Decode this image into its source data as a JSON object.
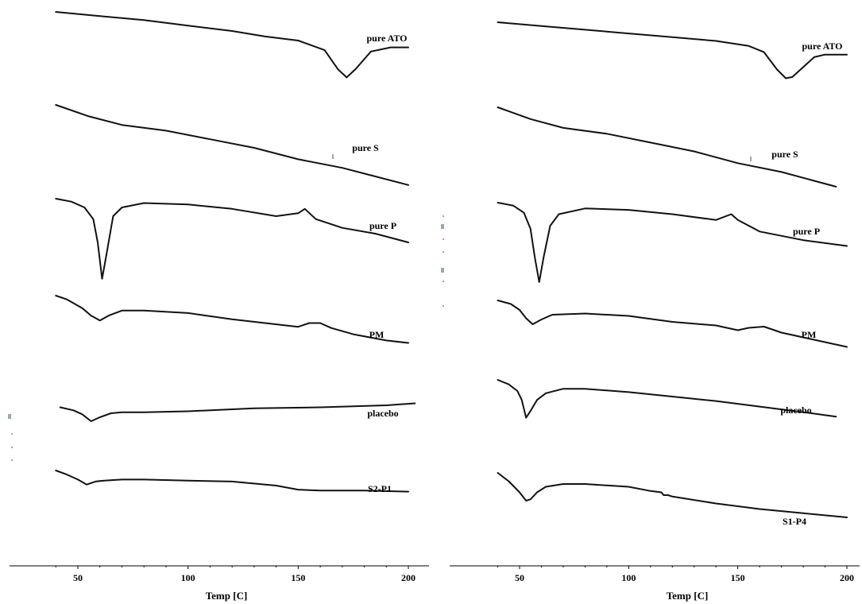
{
  "chart_data": [
    {
      "type": "line",
      "xlabel": "Temp [C]",
      "xticks": [
        50,
        100,
        150,
        200
      ],
      "xlim": [
        30,
        210
      ],
      "series": [
        {
          "name": "pure ATO",
          "x": [
            40,
            60,
            80,
            100,
            120,
            135,
            150,
            162,
            168,
            172,
            176,
            183,
            192,
            200
          ],
          "y": [
            100,
            97,
            94,
            90,
            86,
            82,
            79,
            72,
            58,
            52,
            58,
            71,
            74,
            74
          ]
        },
        {
          "name": "pure S",
          "x": [
            40,
            55,
            70,
            90,
            110,
            130,
            150,
            170,
            185,
            200
          ],
          "y": [
            100,
            92,
            86,
            82,
            76,
            70,
            62,
            56,
            50,
            44
          ]
        },
        {
          "name": "pure P",
          "x": [
            40,
            47,
            53,
            57,
            59,
            61,
            63,
            66,
            70,
            80,
            100,
            120,
            140,
            150,
            153,
            158,
            170,
            185,
            200
          ],
          "y": [
            100,
            98,
            94,
            86,
            70,
            45,
            62,
            88,
            94,
            97,
            96,
            93,
            88,
            90,
            93,
            86,
            80,
            76,
            70
          ]
        },
        {
          "name": "PM",
          "x": [
            40,
            45,
            52,
            56,
            60,
            64,
            70,
            80,
            100,
            120,
            135,
            150,
            155,
            160,
            165,
            175,
            190,
            200
          ],
          "y": [
            100,
            97,
            90,
            84,
            80,
            84,
            88,
            88,
            86,
            81,
            78,
            75,
            78,
            78,
            74,
            69,
            64,
            62
          ]
        },
        {
          "name": "placebo",
          "x": [
            42,
            48,
            52,
            56,
            60,
            65,
            70,
            80,
            100,
            130,
            160,
            190,
            203
          ],
          "y": [
            94,
            91,
            87,
            80,
            84,
            88,
            89,
            89,
            90,
            93,
            94,
            96,
            98
          ]
        },
        {
          "name": "S2-P1",
          "x": [
            40,
            45,
            50,
            54,
            58,
            62,
            70,
            80,
            100,
            120,
            140,
            150,
            160,
            180,
            200
          ],
          "y": [
            100,
            96,
            91,
            86,
            89,
            90,
            91,
            91,
            90,
            89,
            85,
            81,
            80,
            80,
            79
          ]
        }
      ]
    },
    {
      "type": "line",
      "xlabel": "Temp [C]",
      "xticks": [
        50,
        100,
        150,
        200
      ],
      "xlim": [
        30,
        210
      ],
      "series": [
        {
          "name": "pure ATO",
          "x": [
            40,
            60,
            80,
            100,
            120,
            140,
            155,
            162,
            168,
            172,
            175,
            180,
            185,
            190,
            200
          ],
          "y": [
            100,
            97,
            94,
            91,
            88,
            85,
            81,
            76,
            62,
            55,
            56,
            64,
            72,
            74,
            74
          ]
        },
        {
          "name": "pure S",
          "x": [
            40,
            55,
            70,
            90,
            110,
            130,
            150,
            170,
            185,
            195
          ],
          "y": [
            100,
            92,
            86,
            82,
            76,
            70,
            62,
            56,
            50,
            46
          ]
        },
        {
          "name": "pure P",
          "x": [
            40,
            47,
            52,
            55,
            57,
            59,
            61,
            64,
            68,
            80,
            100,
            120,
            140,
            147,
            150,
            160,
            180,
            200
          ],
          "y": [
            100,
            98,
            93,
            82,
            62,
            45,
            62,
            84,
            92,
            96,
            95,
            92,
            88,
            92,
            88,
            80,
            74,
            70
          ]
        },
        {
          "name": "PM",
          "x": [
            40,
            46,
            50,
            53,
            56,
            60,
            65,
            80,
            100,
            120,
            140,
            150,
            155,
            162,
            170,
            185,
            200
          ],
          "y": [
            100,
            97,
            92,
            85,
            80,
            84,
            88,
            89,
            87,
            82,
            79,
            75,
            77,
            78,
            73,
            67,
            61
          ]
        },
        {
          "name": "placebo",
          "x": [
            40,
            45,
            49,
            51,
            53,
            55,
            58,
            62,
            70,
            80,
            100,
            120,
            140,
            160,
            180,
            195
          ],
          "y": [
            100,
            96,
            90,
            82,
            66,
            72,
            82,
            88,
            92,
            92,
            89,
            85,
            81,
            76,
            71,
            67
          ]
        },
        {
          "name": "S1-P4",
          "x": [
            40,
            45,
            50,
            53,
            55,
            58,
            62,
            70,
            80,
            100,
            110,
            115,
            116,
            118,
            120,
            140,
            160,
            180,
            200
          ],
          "y": [
            100,
            94,
            86,
            80,
            81,
            86,
            90,
            92,
            92,
            90,
            87,
            86,
            84,
            84,
            83,
            78,
            74,
            71,
            68
          ]
        }
      ]
    }
  ]
}
